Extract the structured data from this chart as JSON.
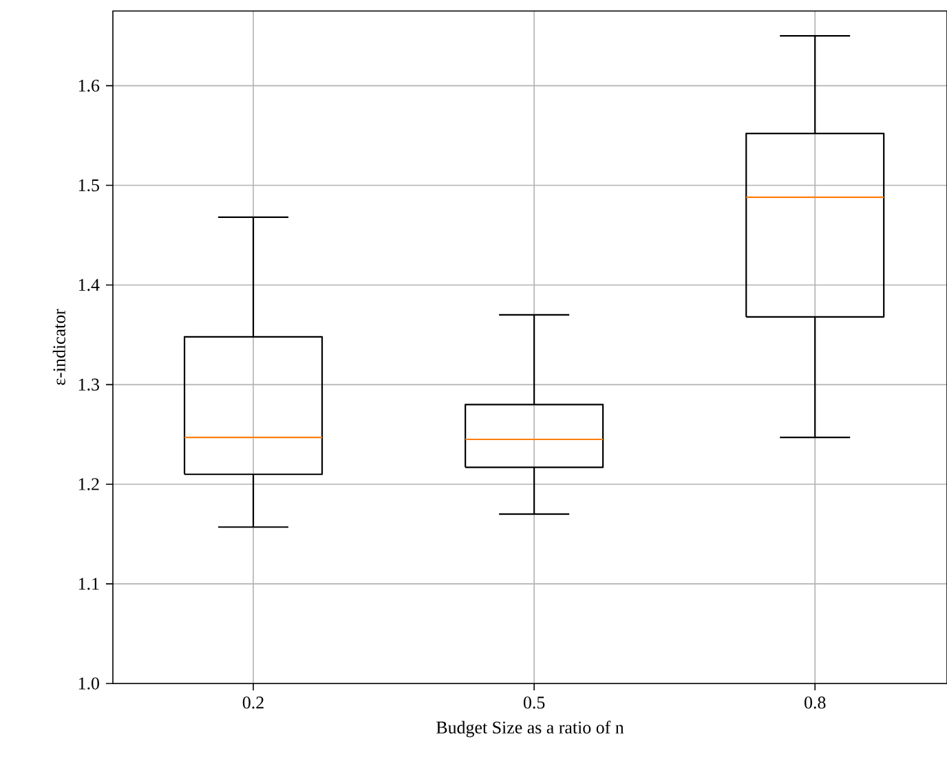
{
  "chart_data": {
    "type": "box",
    "xlabel": "Budget Size as a ratio of n",
    "ylabel": "ε-indicator",
    "categories": [
      "0.2",
      "0.5",
      "0.8"
    ],
    "series": [
      {
        "color": "#000000",
        "boxes": [
          {
            "low": 1.157,
            "q1": 1.21,
            "median": 1.247,
            "q3": 1.348,
            "high": 1.468
          },
          {
            "low": 1.17,
            "q1": 1.217,
            "median": 1.245,
            "q3": 1.28,
            "high": 1.37
          },
          {
            "low": 1.247,
            "q1": 1.368,
            "median": 1.488,
            "q3": 1.552,
            "high": 1.65
          }
        ]
      }
    ],
    "ylim": [
      1.0,
      1.675
    ],
    "yticks": [
      {
        "value": 1.0,
        "label": "1.0"
      },
      1.1,
      1.2,
      1.3,
      1.4,
      1.5,
      1.6
    ],
    "grid": true
  }
}
